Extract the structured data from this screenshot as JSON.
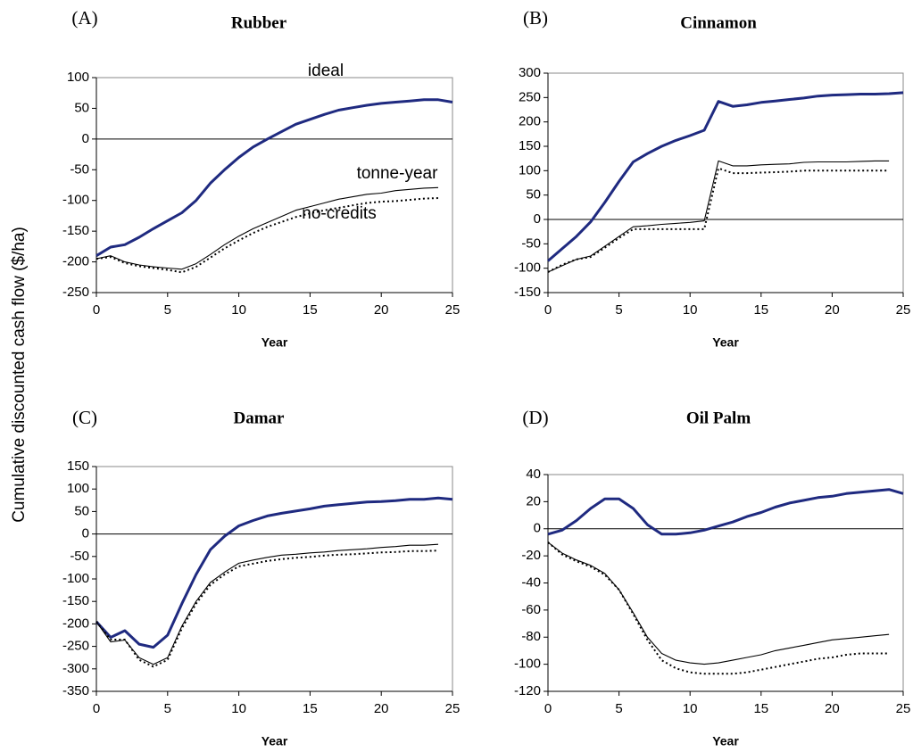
{
  "ylabel": "Cumulative discounted cash flow ($/ha)",
  "chart_data": [
    {
      "type": "line",
      "panel": "(A)",
      "title": "Rubber",
      "xlabel": "Year",
      "annotations": [
        "ideal",
        "tonne-year",
        "no-credits"
      ],
      "x": [
        0,
        1,
        2,
        3,
        4,
        5,
        6,
        7,
        8,
        9,
        10,
        11,
        12,
        13,
        14,
        15,
        16,
        17,
        18,
        19,
        20,
        21,
        22,
        23,
        24,
        25
      ],
      "xlim": [
        0,
        25
      ],
      "xticks": [
        0,
        5,
        10,
        15,
        20,
        25
      ],
      "ylim": [
        -250,
        100
      ],
      "yticks": [
        -250,
        -200,
        -150,
        -100,
        -50,
        0,
        50,
        100
      ],
      "series": [
        {
          "color": "#1f2a80",
          "values": [
            -190,
            -176,
            -172,
            -160,
            -146,
            -133,
            -120,
            -100,
            -72,
            -50,
            -30,
            -13,
            0,
            12,
            24,
            32,
            40,
            47,
            51,
            55,
            58,
            60,
            62,
            64,
            64,
            60
          ]
        },
        {
          "color": "#000000",
          "values": [
            -195,
            -190,
            -200,
            -205,
            -208,
            -210,
            -212,
            -203,
            -188,
            -172,
            -158,
            -146,
            -136,
            -126,
            -116,
            -110,
            -104,
            -98,
            -94,
            -90,
            -88,
            -84,
            -82,
            -80,
            -79,
            null
          ]
        },
        {
          "color": "#000000",
          "dash": "dotted",
          "values": [
            -195,
            -192,
            -202,
            -207,
            -210,
            -213,
            -217,
            -208,
            -193,
            -178,
            -165,
            -153,
            -143,
            -135,
            -127,
            -121,
            -116,
            -112,
            -108,
            -104,
            -102,
            -101,
            -99,
            -97,
            -96,
            null
          ]
        }
      ]
    },
    {
      "type": "line",
      "panel": "(B)",
      "title": "Cinnamon",
      "xlabel": "Year",
      "x": [
        0,
        1,
        2,
        3,
        4,
        5,
        6,
        7,
        8,
        9,
        10,
        11,
        12,
        13,
        14,
        15,
        16,
        17,
        18,
        19,
        20,
        21,
        22,
        23,
        24,
        25
      ],
      "xlim": [
        0,
        25
      ],
      "xticks": [
        0,
        5,
        10,
        15,
        20,
        25
      ],
      "ylim": [
        -150,
        300
      ],
      "yticks": [
        -150,
        -100,
        -50,
        0,
        50,
        100,
        150,
        200,
        250,
        300
      ],
      "series": [
        {
          "color": "#1f2a80",
          "values": [
            -85,
            -60,
            -35,
            -5,
            35,
            78,
            118,
            135,
            150,
            162,
            172,
            183,
            242,
            232,
            235,
            240,
            243,
            246,
            249,
            253,
            255,
            256,
            257,
            257,
            258,
            260
          ]
        },
        {
          "color": "#000000",
          "values": [
            -108,
            -95,
            -82,
            -75,
            -55,
            -35,
            -15,
            -13,
            -10,
            -8,
            -6,
            -3,
            120,
            110,
            110,
            112,
            113,
            114,
            117,
            118,
            118,
            118,
            119,
            120,
            120,
            null
          ]
        },
        {
          "color": "#000000",
          "dash": "dotted",
          "values": [
            -108,
            -93,
            -82,
            -77,
            -58,
            -38,
            -20,
            -20,
            -20,
            -20,
            -20,
            -20,
            105,
            95,
            95,
            96,
            97,
            98,
            100,
            100,
            100,
            100,
            100,
            100,
            100,
            null
          ]
        }
      ]
    },
    {
      "type": "line",
      "panel": "(C)",
      "title": "Damar",
      "xlabel": "Year",
      "x": [
        0,
        1,
        2,
        3,
        4,
        5,
        6,
        7,
        8,
        9,
        10,
        11,
        12,
        13,
        14,
        15,
        16,
        17,
        18,
        19,
        20,
        21,
        22,
        23,
        24,
        25
      ],
      "xlim": [
        0,
        25
      ],
      "xticks": [
        0,
        5,
        10,
        15,
        20,
        25
      ],
      "ylim": [
        -350,
        150
      ],
      "yticks": [
        -350,
        -300,
        -250,
        -200,
        -150,
        -100,
        -50,
        0,
        50,
        100,
        150
      ],
      "series": [
        {
          "color": "#1f2a80",
          "values": [
            -195,
            -230,
            -215,
            -245,
            -252,
            -225,
            -155,
            -90,
            -35,
            -5,
            18,
            30,
            40,
            46,
            51,
            56,
            62,
            65,
            68,
            71,
            72,
            74,
            77,
            77,
            80,
            77
          ]
        },
        {
          "color": "#000000",
          "values": [
            -195,
            -240,
            -236,
            -275,
            -290,
            -275,
            -205,
            -150,
            -108,
            -85,
            -65,
            -58,
            -52,
            -47,
            -45,
            -42,
            -40,
            -37,
            -35,
            -33,
            -30,
            -28,
            -25,
            -25,
            -23,
            null
          ]
        },
        {
          "color": "#000000",
          "dash": "dotted",
          "values": [
            -195,
            -235,
            -235,
            -280,
            -295,
            -280,
            -210,
            -155,
            -113,
            -90,
            -72,
            -66,
            -60,
            -56,
            -53,
            -51,
            -48,
            -46,
            -45,
            -43,
            -41,
            -40,
            -38,
            -38,
            -37,
            null
          ]
        }
      ]
    },
    {
      "type": "line",
      "panel": "(D)",
      "title": "Oil Palm",
      "xlabel": "Year",
      "x": [
        0,
        1,
        2,
        3,
        4,
        5,
        6,
        7,
        8,
        9,
        10,
        11,
        12,
        13,
        14,
        15,
        16,
        17,
        18,
        19,
        20,
        21,
        22,
        23,
        24,
        25
      ],
      "xlim": [
        0,
        25
      ],
      "xticks": [
        0,
        5,
        10,
        15,
        20,
        25
      ],
      "ylim": [
        -120,
        40
      ],
      "yticks": [
        -120,
        -100,
        -80,
        -60,
        -40,
        -20,
        0,
        20,
        40
      ],
      "series": [
        {
          "color": "#1f2a80",
          "values": [
            -4,
            -1,
            6,
            15,
            22,
            22,
            15,
            3,
            -4,
            -4,
            -3,
            -1,
            2,
            5,
            9,
            12,
            16,
            19,
            21,
            23,
            24,
            26,
            27,
            28,
            29,
            26
          ]
        },
        {
          "color": "#000000",
          "values": [
            -10,
            -18,
            -23,
            -27,
            -33,
            -45,
            -62,
            -80,
            -92,
            -97,
            -99,
            -100,
            -99,
            -97,
            -95,
            -93,
            -90,
            -88,
            -86,
            -84,
            -82,
            -81,
            -80,
            -79,
            -78,
            null
          ]
        },
        {
          "color": "#000000",
          "dash": "dotted",
          "values": [
            -10,
            -19,
            -24,
            -28,
            -34,
            -45,
            -63,
            -82,
            -97,
            -103,
            -106,
            -107,
            -107,
            -107,
            -106,
            -104,
            -102,
            -100,
            -98,
            -96,
            -95,
            -93,
            -92,
            -92,
            -92,
            null
          ]
        }
      ]
    }
  ]
}
